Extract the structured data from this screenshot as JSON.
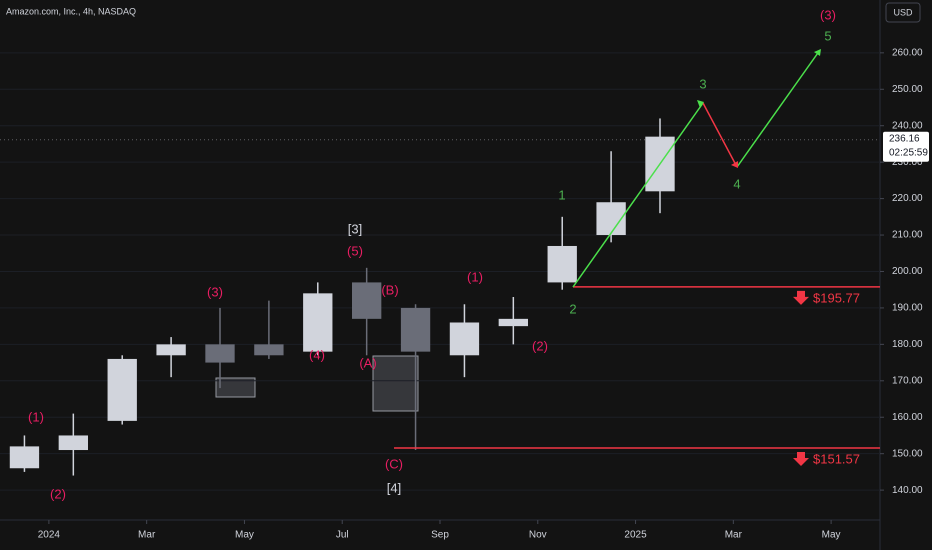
{
  "chart_data": {
    "type": "candlestick",
    "title": "Amazon.com, Inc., 4h, NASDAQ",
    "currency": "USD",
    "x": [
      "2023-12",
      "2024-01",
      "2024-02",
      "2024-03",
      "2024-04",
      "2024-05",
      "2024-06",
      "2024-07",
      "2024-08",
      "2024-09",
      "2024-10",
      "2024-11",
      "2024-12",
      "2025-01"
    ],
    "open": [
      146,
      151,
      159,
      177,
      180,
      180,
      178,
      197,
      190,
      177,
      185,
      197,
      210,
      222
    ],
    "high": [
      155,
      161,
      177,
      182,
      190,
      192,
      197,
      201,
      191,
      191,
      193,
      215,
      233,
      242
    ],
    "low": [
      145,
      144,
      158,
      171,
      168,
      176,
      177,
      177,
      151,
      171,
      180,
      195,
      208,
      216
    ],
    "close": [
      152,
      155,
      176,
      180,
      175,
      177,
      194,
      187,
      178,
      186,
      187,
      207,
      219,
      237
    ],
    "up_color": "#d1d4dc",
    "down_color": "#6a6d78",
    "xlim": [
      "2023-12",
      "2025-06"
    ],
    "xticks": [
      {
        "value": "2024-01",
        "label": "2024"
      },
      {
        "value": "2024-03",
        "label": "Mar"
      },
      {
        "value": "2024-05",
        "label": "May"
      },
      {
        "value": "2024-07",
        "label": "Jul"
      },
      {
        "value": "2024-09",
        "label": "Sep"
      },
      {
        "value": "2024-11",
        "label": "Nov"
      },
      {
        "value": "2025-01",
        "label": "2025"
      },
      {
        "value": "2025-03",
        "label": "Mar"
      },
      {
        "value": "2025-05",
        "label": "May"
      }
    ],
    "ylim": [
      131.8,
      274.5
    ],
    "yticks": [
      {
        "value": 140,
        "label": "140.00"
      },
      {
        "value": 150,
        "label": "150.00"
      },
      {
        "value": 160,
        "label": "160.00"
      },
      {
        "value": 170,
        "label": "170.00"
      },
      {
        "value": 180,
        "label": "180.00"
      },
      {
        "value": 190,
        "label": "190.00"
      },
      {
        "value": 200,
        "label": "200.00"
      },
      {
        "value": 210,
        "label": "210.00"
      },
      {
        "value": 220,
        "label": "220.00"
      },
      {
        "value": 230,
        "label": "230.00"
      },
      {
        "value": 240,
        "label": "240.00"
      },
      {
        "value": 250,
        "label": "250.00"
      },
      {
        "value": 260,
        "label": "260.00"
      }
    ],
    "last_price": 236.16,
    "countdown": "02:25:59",
    "levels": [
      {
        "value": 195.77,
        "label": "$195.77",
        "color": "#f23645"
      },
      {
        "value": 151.57,
        "label": "$151.57",
        "color": "#f23645"
      }
    ],
    "annotations": [
      {
        "text": "(1)",
        "color": "#e91e63"
      },
      {
        "text": "(2)",
        "color": "#e91e63"
      },
      {
        "text": "(3)",
        "color": "#e91e63"
      },
      {
        "text": "(4)",
        "color": "#e91e63"
      },
      {
        "text": "(5)",
        "color": "#e91e63"
      },
      {
        "text": "[3]",
        "color": "#d1d4dc"
      },
      {
        "text": "(A)",
        "color": "#e91e63"
      },
      {
        "text": "(B)",
        "color": "#e91e63"
      },
      {
        "text": "(C)",
        "color": "#e91e63"
      },
      {
        "text": "[4]",
        "color": "#d1d4dc"
      },
      {
        "text": "(1)",
        "color": "#e91e63"
      },
      {
        "text": "(2)",
        "color": "#e91e63"
      },
      {
        "text": "1",
        "color": "#4caf50"
      },
      {
        "text": "2",
        "color": "#4caf50"
      },
      {
        "text": "3",
        "color": "#4caf50"
      },
      {
        "text": "4",
        "color": "#4caf50"
      },
      {
        "text": "5",
        "color": "#4caf50"
      },
      {
        "text": "(3)",
        "color": "#e91e63"
      }
    ]
  }
}
